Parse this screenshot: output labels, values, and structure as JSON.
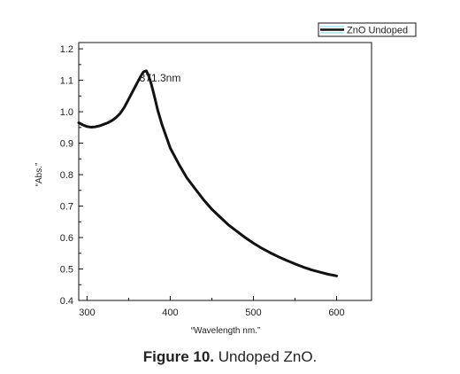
{
  "caption": {
    "label": "Figure 10.",
    "text": "Undoped ZnO."
  },
  "chart_data": {
    "type": "line",
    "xlabel": "“Wavelength nm.”",
    "ylabel": "“Abs.”",
    "xlim": [
      290,
      642
    ],
    "ylim": [
      0.4,
      1.22
    ],
    "x_ticks": [
      300,
      400,
      500,
      600
    ],
    "x_tick_labels": [
      "300",
      "400",
      "500",
      "600"
    ],
    "y_ticks": [
      0.4,
      0.5,
      0.6,
      0.7,
      0.8,
      0.9,
      1.0,
      1.1,
      1.2
    ],
    "y_tick_labels": [
      "0.4",
      "0.5",
      "0.6",
      "0.7",
      "0.8",
      "0.9",
      "1.0",
      "1.1",
      "1.2"
    ],
    "grid": false,
    "legend": {
      "position": "top-right, outside plot",
      "entries": [
        "ZnO Undoped"
      ]
    },
    "annotations": [
      {
        "text": "371.3nm",
        "x": 371.3,
        "y": 1.13
      }
    ],
    "series": [
      {
        "name": "ZnO Undoped",
        "color": "#111111",
        "x": [
          290,
          295,
          300,
          305,
          310,
          315,
          320,
          325,
          330,
          335,
          340,
          345,
          350,
          355,
          360,
          365,
          368,
          371.3,
          374,
          377,
          380,
          385,
          390,
          400,
          410,
          420,
          430,
          440,
          450,
          460,
          470,
          480,
          490,
          500,
          510,
          520,
          530,
          540,
          550,
          560,
          570,
          580,
          590,
          600
        ],
        "y": [
          0.965,
          0.958,
          0.953,
          0.951,
          0.952,
          0.955,
          0.96,
          0.965,
          0.972,
          0.982,
          0.995,
          1.015,
          1.04,
          1.065,
          1.09,
          1.115,
          1.127,
          1.13,
          1.115,
          1.09,
          1.06,
          1.005,
          0.96,
          0.885,
          0.835,
          0.79,
          0.755,
          0.72,
          0.69,
          0.665,
          0.64,
          0.62,
          0.6,
          0.582,
          0.566,
          0.552,
          0.539,
          0.527,
          0.516,
          0.506,
          0.497,
          0.49,
          0.483,
          0.478
        ]
      }
    ]
  }
}
